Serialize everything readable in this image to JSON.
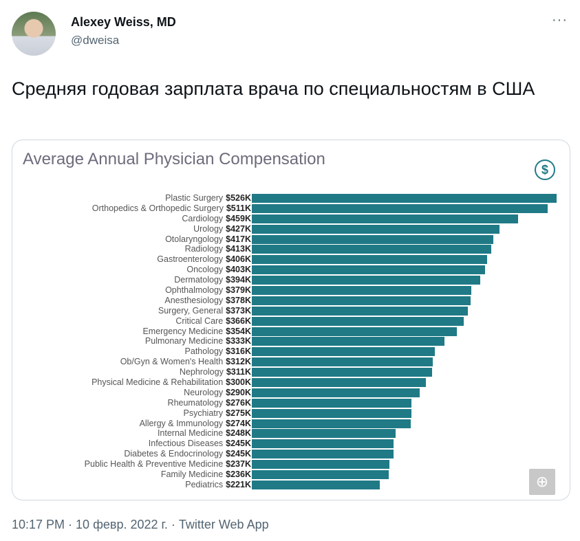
{
  "author": {
    "name": "Alexey Weiss, MD",
    "handle": "@dweisa"
  },
  "more_label": "···",
  "tweet_text": "Средняя годовая зарплата врача по специальностям в США",
  "meta": "10:17 PM · 10 февр. 2022 г. · Twitter Web App",
  "icons": {
    "dollar": "$",
    "zoom": "⊕"
  },
  "colors": {
    "bar": "#1f7a86"
  },
  "chart_data": {
    "type": "bar",
    "orientation": "horizontal",
    "title": "Average Annual Physician Compensation",
    "categories": [
      "Plastic Surgery",
      "Orthopedics & Orthopedic Surgery",
      "Cardiology",
      "Urology",
      "Otolaryngology",
      "Radiology",
      "Gastroenterology",
      "Oncology",
      "Dermatology",
      "Ophthalmology",
      "Anesthesiology",
      "Surgery, General",
      "Critical Care",
      "Emergency Medicine",
      "Pulmonary Medicine",
      "Pathology",
      "Ob/Gyn & Women's Health",
      "Nephrology",
      "Physical Medicine & Rehabilitation",
      "Neurology",
      "Rheumatology",
      "Psychiatry",
      "Allergy & Immunology",
      "Internal Medicine",
      "Infectious Diseases",
      "Diabetes & Endocrinology",
      "Public Health & Preventive Medicine",
      "Family Medicine",
      "Pediatrics"
    ],
    "values": [
      526,
      511,
      459,
      427,
      417,
      413,
      406,
      403,
      394,
      379,
      378,
      373,
      366,
      354,
      333,
      316,
      312,
      311,
      300,
      290,
      276,
      275,
      274,
      248,
      245,
      245,
      237,
      236,
      221
    ],
    "value_labels": [
      "$526K",
      "$511K",
      "$459K",
      "$427K",
      "$417K",
      "$413K",
      "$406K",
      "$403K",
      "$394K",
      "$379K",
      "$378K",
      "$373K",
      "$366K",
      "$354K",
      "$333K",
      "$316K",
      "$312K",
      "$311K",
      "$300K",
      "$290K",
      "$276K",
      "$275K",
      "$274K",
      "$248K",
      "$245K",
      "$245K",
      "$237K",
      "$236K",
      "$221K"
    ],
    "unit": "thousand USD"
  }
}
